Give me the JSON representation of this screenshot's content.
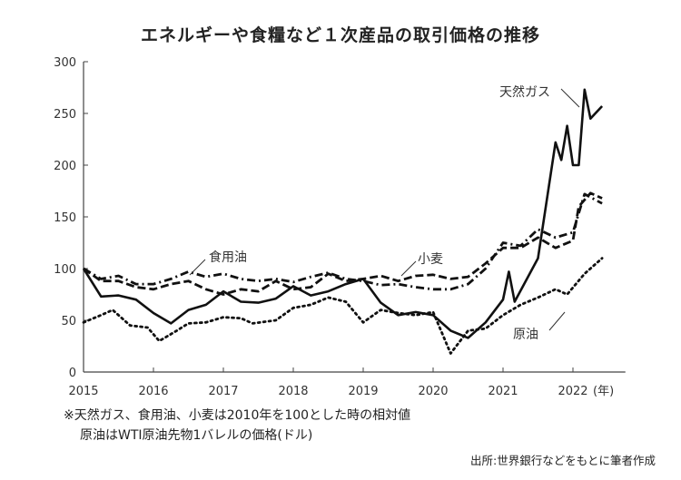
{
  "chart_data": {
    "type": "line",
    "title": "エネルギーや食糧など１次産品の取引価格の推移",
    "xlabel": "(年)",
    "ylabel": "",
    "xlim": [
      "2015-01",
      "2022-10"
    ],
    "ylim": [
      0,
      300
    ],
    "yticks": [
      "0",
      "50",
      "100",
      "150",
      "200",
      "250",
      "300"
    ],
    "xticks": [
      "2015",
      "2016",
      "2017",
      "2018",
      "2019",
      "2020",
      "2021",
      "2022"
    ],
    "grid": false,
    "series": [
      {
        "name": "天然ガス",
        "style": "solid",
        "x": [
          "2015-01",
          "2015-04",
          "2015-07",
          "2015-10",
          "2016-01",
          "2016-04",
          "2016-07",
          "2016-10",
          "2017-01",
          "2017-04",
          "2017-07",
          "2017-10",
          "2018-01",
          "2018-04",
          "2018-07",
          "2018-10",
          "2019-01",
          "2019-04",
          "2019-07",
          "2019-10",
          "2020-01",
          "2020-04",
          "2020-07",
          "2020-10",
          "2021-01",
          "2021-02",
          "2021-03",
          "2021-07",
          "2021-10",
          "2021-11",
          "2021-12",
          "2022-01",
          "2022-02",
          "2022-03",
          "2022-04",
          "2022-06"
        ],
        "y": [
          100,
          73,
          74,
          70,
          57,
          47,
          60,
          65,
          78,
          68,
          67,
          71,
          83,
          74,
          78,
          85,
          90,
          67,
          55,
          58,
          55,
          40,
          33,
          48,
          70,
          97,
          68,
          110,
          222,
          205,
          238,
          200,
          200,
          273,
          245,
          257
        ]
      },
      {
        "name": "食用油",
        "style": "dashdot",
        "x": [
          "2015-01",
          "2015-04",
          "2015-07",
          "2015-10",
          "2016-01",
          "2016-04",
          "2016-07",
          "2016-10",
          "2017-01",
          "2017-04",
          "2017-07",
          "2017-10",
          "2018-01",
          "2018-04",
          "2018-07",
          "2018-10",
          "2019-01",
          "2019-04",
          "2019-07",
          "2019-10",
          "2020-01",
          "2020-04",
          "2020-07",
          "2020-10",
          "2021-01",
          "2021-04",
          "2021-07",
          "2021-10",
          "2022-01",
          "2022-03",
          "2022-06"
        ],
        "y": [
          100,
          90,
          93,
          85,
          85,
          90,
          97,
          92,
          95,
          90,
          88,
          90,
          87,
          92,
          96,
          90,
          88,
          84,
          85,
          82,
          80,
          80,
          85,
          100,
          125,
          122,
          138,
          130,
          135,
          172,
          163
        ]
      },
      {
        "name": "小麦",
        "style": "dashed",
        "x": [
          "2015-01",
          "2015-04",
          "2015-07",
          "2015-10",
          "2016-01",
          "2016-04",
          "2016-07",
          "2016-10",
          "2017-01",
          "2017-04",
          "2017-07",
          "2017-10",
          "2018-01",
          "2018-04",
          "2018-07",
          "2018-10",
          "2019-01",
          "2019-04",
          "2019-07",
          "2019-10",
          "2020-01",
          "2020-04",
          "2020-07",
          "2020-10",
          "2021-01",
          "2021-04",
          "2021-07",
          "2021-10",
          "2022-01",
          "2022-02",
          "2022-04",
          "2022-06"
        ],
        "y": [
          100,
          88,
          88,
          82,
          80,
          85,
          88,
          80,
          75,
          80,
          78,
          88,
          80,
          82,
          95,
          88,
          90,
          93,
          88,
          93,
          94,
          90,
          92,
          105,
          120,
          120,
          130,
          120,
          127,
          160,
          173,
          168
        ]
      },
      {
        "name": "原油",
        "style": "dotted",
        "x": [
          "2015-01",
          "2015-04",
          "2015-06",
          "2015-09",
          "2015-12",
          "2016-02",
          "2016-05",
          "2016-07",
          "2016-10",
          "2017-01",
          "2017-04",
          "2017-06",
          "2017-10",
          "2018-01",
          "2018-04",
          "2018-07",
          "2018-10",
          "2019-01",
          "2019-04",
          "2019-07",
          "2019-10",
          "2020-01",
          "2020-04",
          "2020-07",
          "2020-10",
          "2021-01",
          "2021-04",
          "2021-07",
          "2021-10",
          "2021-12",
          "2022-03",
          "2022-06"
        ],
        "y": [
          48,
          55,
          60,
          45,
          43,
          30,
          40,
          47,
          48,
          53,
          52,
          47,
          50,
          62,
          65,
          72,
          68,
          48,
          60,
          57,
          55,
          58,
          18,
          40,
          42,
          55,
          65,
          72,
          80,
          75,
          95,
          110
        ]
      }
    ]
  },
  "notes": {
    "line1": "※天然ガス、食用油、小麦は2010年を100とした時の相対値",
    "line2": "原油はWTI原油先物1バレルの価格(ドル)"
  },
  "source": "出所:世界銀行などをもとに筆者作成"
}
